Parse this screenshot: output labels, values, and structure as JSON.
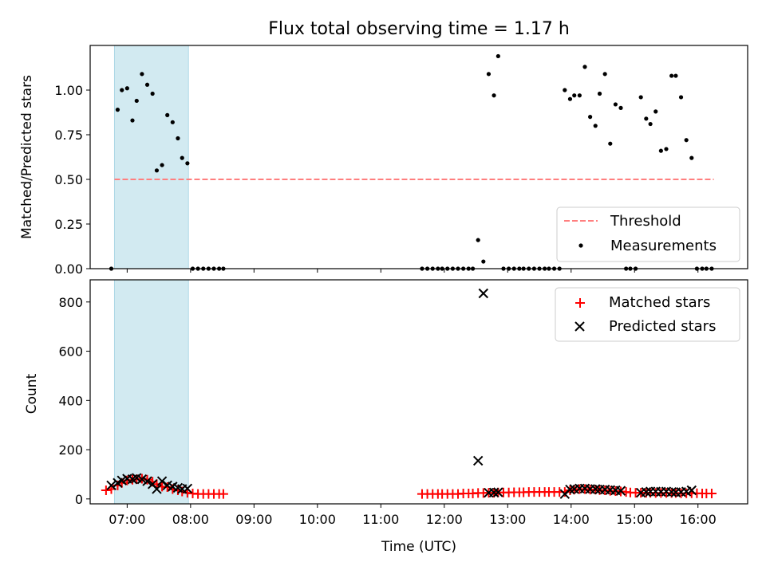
{
  "chart_data": [
    {
      "type": "scatter",
      "title": "Flux total observing time = 1.17 h",
      "ylabel": "Matched/Predicted stars",
      "xlabel": "",
      "xlim": [
        "06:25",
        "16:47"
      ],
      "ylim": [
        0,
        1.25
      ],
      "yticks": [
        "0.00",
        "0.25",
        "0.50",
        "0.75",
        "1.00"
      ],
      "shaded_interval": [
        "06:48",
        "07:58"
      ],
      "shade_color": "#add8e6",
      "legend_position": "lower right",
      "threshold": {
        "name": "Threshold",
        "value": 0.5,
        "x_range": [
          "06:48",
          "16:15"
        ],
        "color": "#ff7f7f",
        "style": "dashed"
      },
      "series": [
        {
          "name": "Measurements",
          "color": "#000000",
          "marker": "dot",
          "points": [
            [
              "06:45",
              0.0
            ],
            [
              "06:51",
              0.89
            ],
            [
              "06:55",
              1.0
            ],
            [
              "07:00",
              1.01
            ],
            [
              "07:05",
              0.83
            ],
            [
              "07:09",
              0.94
            ],
            [
              "07:14",
              1.09
            ],
            [
              "07:19",
              1.03
            ],
            [
              "07:24",
              0.98
            ],
            [
              "07:28",
              0.55
            ],
            [
              "07:33",
              0.58
            ],
            [
              "07:38",
              0.86
            ],
            [
              "07:43",
              0.82
            ],
            [
              "07:48",
              0.73
            ],
            [
              "07:52",
              0.62
            ],
            [
              "07:57",
              0.59
            ],
            [
              "08:02",
              0.0
            ],
            [
              "08:07",
              0.0
            ],
            [
              "08:12",
              0.0
            ],
            [
              "08:17",
              0.0
            ],
            [
              "08:22",
              0.0
            ],
            [
              "08:27",
              0.0
            ],
            [
              "08:31",
              0.0
            ],
            [
              "11:39",
              0.0
            ],
            [
              "11:44",
              0.0
            ],
            [
              "11:49",
              0.0
            ],
            [
              "11:54",
              0.0
            ],
            [
              "11:58",
              0.0
            ],
            [
              "12:03",
              0.0
            ],
            [
              "12:08",
              0.0
            ],
            [
              "12:13",
              0.0
            ],
            [
              "12:18",
              0.0
            ],
            [
              "12:23",
              0.0
            ],
            [
              "12:27",
              0.0
            ],
            [
              "12:32",
              0.16
            ],
            [
              "12:37",
              0.04
            ],
            [
              "12:42",
              1.09
            ],
            [
              "12:47",
              0.97
            ],
            [
              "12:51",
              1.19
            ],
            [
              "12:56",
              0.0
            ],
            [
              "13:01",
              0.0
            ],
            [
              "13:06",
              0.0
            ],
            [
              "13:11",
              0.0
            ],
            [
              "13:15",
              0.0
            ],
            [
              "13:20",
              0.0
            ],
            [
              "13:25",
              0.0
            ],
            [
              "13:30",
              0.0
            ],
            [
              "13:35",
              0.0
            ],
            [
              "13:39",
              0.0
            ],
            [
              "13:44",
              0.0
            ],
            [
              "13:49",
              0.0
            ],
            [
              "13:54",
              1.0
            ],
            [
              "13:59",
              0.95
            ],
            [
              "14:03",
              0.97
            ],
            [
              "14:08",
              0.97
            ],
            [
              "14:13",
              1.13
            ],
            [
              "14:18",
              0.85
            ],
            [
              "14:23",
              0.8
            ],
            [
              "14:27",
              0.98
            ],
            [
              "14:32",
              1.09
            ],
            [
              "14:37",
              0.7
            ],
            [
              "14:42",
              0.92
            ],
            [
              "14:47",
              0.9
            ],
            [
              "14:52",
              0.0
            ],
            [
              "14:56",
              0.0
            ],
            [
              "15:01",
              0.0
            ],
            [
              "15:06",
              0.96
            ],
            [
              "15:11",
              0.84
            ],
            [
              "15:15",
              0.81
            ],
            [
              "15:20",
              0.88
            ],
            [
              "15:25",
              0.66
            ],
            [
              "15:30",
              0.67
            ],
            [
              "15:35",
              1.08
            ],
            [
              "15:39",
              1.08
            ],
            [
              "15:44",
              0.96
            ],
            [
              "15:49",
              0.72
            ],
            [
              "15:54",
              0.62
            ],
            [
              "15:59",
              0.0
            ],
            [
              "16:04",
              0.0
            ],
            [
              "16:08",
              0.0
            ],
            [
              "16:13",
              0.0
            ]
          ]
        }
      ]
    },
    {
      "type": "scatter",
      "title": "",
      "xlabel": "Time (UTC)",
      "ylabel": "Count",
      "xlim": [
        "06:25",
        "16:47"
      ],
      "ylim": [
        -20,
        890
      ],
      "xticks": [
        "07:00",
        "08:00",
        "09:00",
        "10:00",
        "11:00",
        "12:00",
        "13:00",
        "14:00",
        "15:00",
        "16:00"
      ],
      "yticks": [
        "0",
        "200",
        "400",
        "600",
        "800"
      ],
      "shaded_interval": [
        "06:48",
        "07:58"
      ],
      "shade_color": "#add8e6",
      "legend_position": "upper right",
      "series": [
        {
          "name": "Matched stars",
          "color": "#ff0000",
          "marker": "plus",
          "points": [
            [
              "06:40",
              35
            ],
            [
              "06:45",
              40
            ],
            [
              "06:51",
              55
            ],
            [
              "06:55",
              65
            ],
            [
              "07:00",
              75
            ],
            [
              "07:05",
              78
            ],
            [
              "07:09",
              80
            ],
            [
              "07:14",
              82
            ],
            [
              "07:19",
              78
            ],
            [
              "07:24",
              70
            ],
            [
              "07:28",
              60
            ],
            [
              "07:33",
              50
            ],
            [
              "07:38",
              48
            ],
            [
              "07:43",
              40
            ],
            [
              "07:48",
              35
            ],
            [
              "07:52",
              30
            ],
            [
              "07:57",
              25
            ],
            [
              "08:02",
              22
            ],
            [
              "08:07",
              20
            ],
            [
              "08:12",
              20
            ],
            [
              "08:17",
              20
            ],
            [
              "08:22",
              20
            ],
            [
              "08:27",
              20
            ],
            [
              "08:31",
              20
            ],
            [
              "11:39",
              20
            ],
            [
              "11:44",
              20
            ],
            [
              "11:49",
              20
            ],
            [
              "11:54",
              20
            ],
            [
              "11:58",
              20
            ],
            [
              "12:03",
              20
            ],
            [
              "12:08",
              20
            ],
            [
              "12:13",
              20
            ],
            [
              "12:18",
              22
            ],
            [
              "12:23",
              22
            ],
            [
              "12:27",
              22
            ],
            [
              "12:32",
              24
            ],
            [
              "12:37",
              24
            ],
            [
              "12:42",
              25
            ],
            [
              "12:47",
              25
            ],
            [
              "12:51",
              26
            ],
            [
              "12:56",
              26
            ],
            [
              "13:01",
              26
            ],
            [
              "13:06",
              27
            ],
            [
              "13:11",
              27
            ],
            [
              "13:15",
              27
            ],
            [
              "13:20",
              28
            ],
            [
              "13:25",
              28
            ],
            [
              "13:30",
              28
            ],
            [
              "13:35",
              28
            ],
            [
              "13:39",
              28
            ],
            [
              "13:44",
              28
            ],
            [
              "13:49",
              28
            ],
            [
              "13:54",
              28
            ],
            [
              "13:59",
              35
            ],
            [
              "14:03",
              38
            ],
            [
              "14:08",
              40
            ],
            [
              "14:13",
              40
            ],
            [
              "14:18",
              38
            ],
            [
              "14:23",
              38
            ],
            [
              "14:27",
              36
            ],
            [
              "14:32",
              35
            ],
            [
              "14:37",
              33
            ],
            [
              "14:42",
              32
            ],
            [
              "14:47",
              30
            ],
            [
              "14:52",
              28
            ],
            [
              "14:56",
              26
            ],
            [
              "15:01",
              25
            ],
            [
              "15:06",
              25
            ],
            [
              "15:11",
              25
            ],
            [
              "15:15",
              25
            ],
            [
              "15:20",
              24
            ],
            [
              "15:25",
              24
            ],
            [
              "15:30",
              24
            ],
            [
              "15:35",
              24
            ],
            [
              "15:39",
              24
            ],
            [
              "15:44",
              23
            ],
            [
              "15:49",
              23
            ],
            [
              "15:54",
              23
            ],
            [
              "15:59",
              23
            ],
            [
              "16:04",
              22
            ],
            [
              "16:08",
              22
            ],
            [
              "16:13",
              22
            ]
          ]
        },
        {
          "name": "Predicted stars",
          "color": "#000000",
          "marker": "x",
          "points": [
            [
              "06:45",
              55
            ],
            [
              "06:51",
              65
            ],
            [
              "06:55",
              75
            ],
            [
              "07:00",
              82
            ],
            [
              "07:05",
              80
            ],
            [
              "07:09",
              85
            ],
            [
              "07:14",
              80
            ],
            [
              "07:19",
              72
            ],
            [
              "07:24",
              60
            ],
            [
              "07:28",
              40
            ],
            [
              "07:33",
              72
            ],
            [
              "07:38",
              55
            ],
            [
              "07:43",
              50
            ],
            [
              "07:48",
              45
            ],
            [
              "07:52",
              40
            ],
            [
              "07:57",
              42
            ],
            [
              "12:32",
              155
            ],
            [
              "12:37",
              835
            ],
            [
              "12:42",
              25
            ],
            [
              "12:47",
              26
            ],
            [
              "12:51",
              27
            ],
            [
              "13:54",
              20
            ],
            [
              "13:59",
              38
            ],
            [
              "14:03",
              40
            ],
            [
              "14:08",
              42
            ],
            [
              "14:13",
              42
            ],
            [
              "14:18",
              40
            ],
            [
              "14:23",
              40
            ],
            [
              "14:27",
              38
            ],
            [
              "14:32",
              38
            ],
            [
              "14:37",
              36
            ],
            [
              "14:42",
              35
            ],
            [
              "14:47",
              33
            ],
            [
              "15:06",
              25
            ],
            [
              "15:11",
              28
            ],
            [
              "15:15",
              30
            ],
            [
              "15:20",
              30
            ],
            [
              "15:25",
              29
            ],
            [
              "15:30",
              30
            ],
            [
              "15:35",
              28
            ],
            [
              "15:39",
              27
            ],
            [
              "15:44",
              28
            ],
            [
              "15:49",
              30
            ],
            [
              "15:54",
              35
            ]
          ]
        }
      ]
    }
  ]
}
